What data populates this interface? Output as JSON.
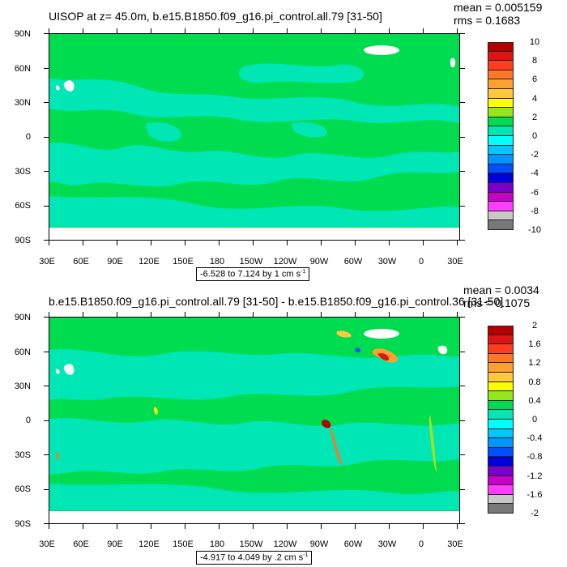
{
  "panel1": {
    "title": "UISOP at z=  45.0m, b.e15.B1850.f09_g16.pi_control.all.79 [31-50]",
    "mean": "mean = 0.005159",
    "rms": "rms = 0.1683",
    "scale_text": "-6.528 to 7.124 by 1 cm s",
    "scale_exp": "-1",
    "colorbar_labels": [
      "10",
      "8",
      "6",
      "4",
      "2",
      "0",
      "-2",
      "-4",
      "-6",
      "-8",
      "-10"
    ]
  },
  "panel2": {
    "title": "b.e15.B1850.f09_g16.pi_control.all.79 [31-50] - b.e15.B1850.f09_g16.pi_control.36 [31-50]",
    "mean": "mean = 0.0034",
    "rms": "rms = 0.1075",
    "scale_text": "-4.917 to 4.049 by .2 cm s",
    "scale_exp": "-1",
    "colorbar_labels": [
      "2",
      "1.6",
      "1.2",
      "0.8",
      "0.4",
      "0",
      "-0.4",
      "-0.8",
      "-1.2",
      "-1.6",
      "-2"
    ]
  },
  "axes": {
    "lat_labels": [
      "90N",
      "60N",
      "30N",
      "0",
      "30S",
      "60S",
      "90S"
    ],
    "lon_labels": [
      "30E",
      "60E",
      "90E",
      "120E",
      "150E",
      "180",
      "150W",
      "120W",
      "90W",
      "60W",
      "30W",
      "0",
      "30E"
    ]
  },
  "colorbar_colors": [
    "#b40000",
    "#dc1414",
    "#ff3c1e",
    "#ff7828",
    "#ffa032",
    "#ffc83c",
    "#ffff00",
    "#96e61e",
    "#00dc50",
    "#00e6b4",
    "#00ffff",
    "#00c8ff",
    "#0096ff",
    "#0050ff",
    "#0000dc",
    "#7800c8",
    "#c800c8",
    "#ff3cff",
    "#c8c8c8",
    "#787878"
  ],
  "map_colors": {
    "ocean_main": "#00dc50",
    "ocean_low": "#00e6b4",
    "land_ice": "#ffffff"
  }
}
